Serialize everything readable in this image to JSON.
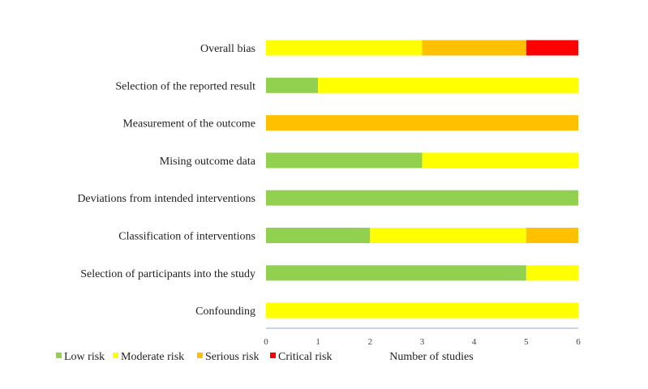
{
  "chart_data": {
    "type": "bar",
    "orientation": "horizontal",
    "stacked": true,
    "title": "",
    "xlabel": "Number of studies",
    "ylabel": "",
    "xlim": [
      0,
      6
    ],
    "x_ticks": [
      "0",
      "1",
      "2",
      "3",
      "4",
      "5",
      "6"
    ],
    "grid": false,
    "legend_position": "bottom-left",
    "categories": [
      "Overall bias",
      "Selection of the reported result",
      "Measurement of the outcome",
      "Mising outcome data",
      "Deviations from intended interventions",
      "Classification of interventions",
      "Selection of participants into the study",
      "Confounding"
    ],
    "series": [
      {
        "name": "Low risk",
        "color": "#92d050",
        "values": [
          0,
          1,
          0,
          3,
          6,
          2,
          5,
          0
        ]
      },
      {
        "name": "Moderate risk",
        "color": "#ffff00",
        "values": [
          3,
          5,
          0,
          3,
          0,
          3,
          1,
          6
        ]
      },
      {
        "name": "Serious risk",
        "color": "#ffc000",
        "values": [
          2,
          0,
          6,
          0,
          0,
          1,
          0,
          0
        ]
      },
      {
        "name": "Critical risk",
        "color": "#ff0000",
        "values": [
          1,
          0,
          0,
          0,
          0,
          0,
          0,
          0
        ]
      }
    ]
  }
}
